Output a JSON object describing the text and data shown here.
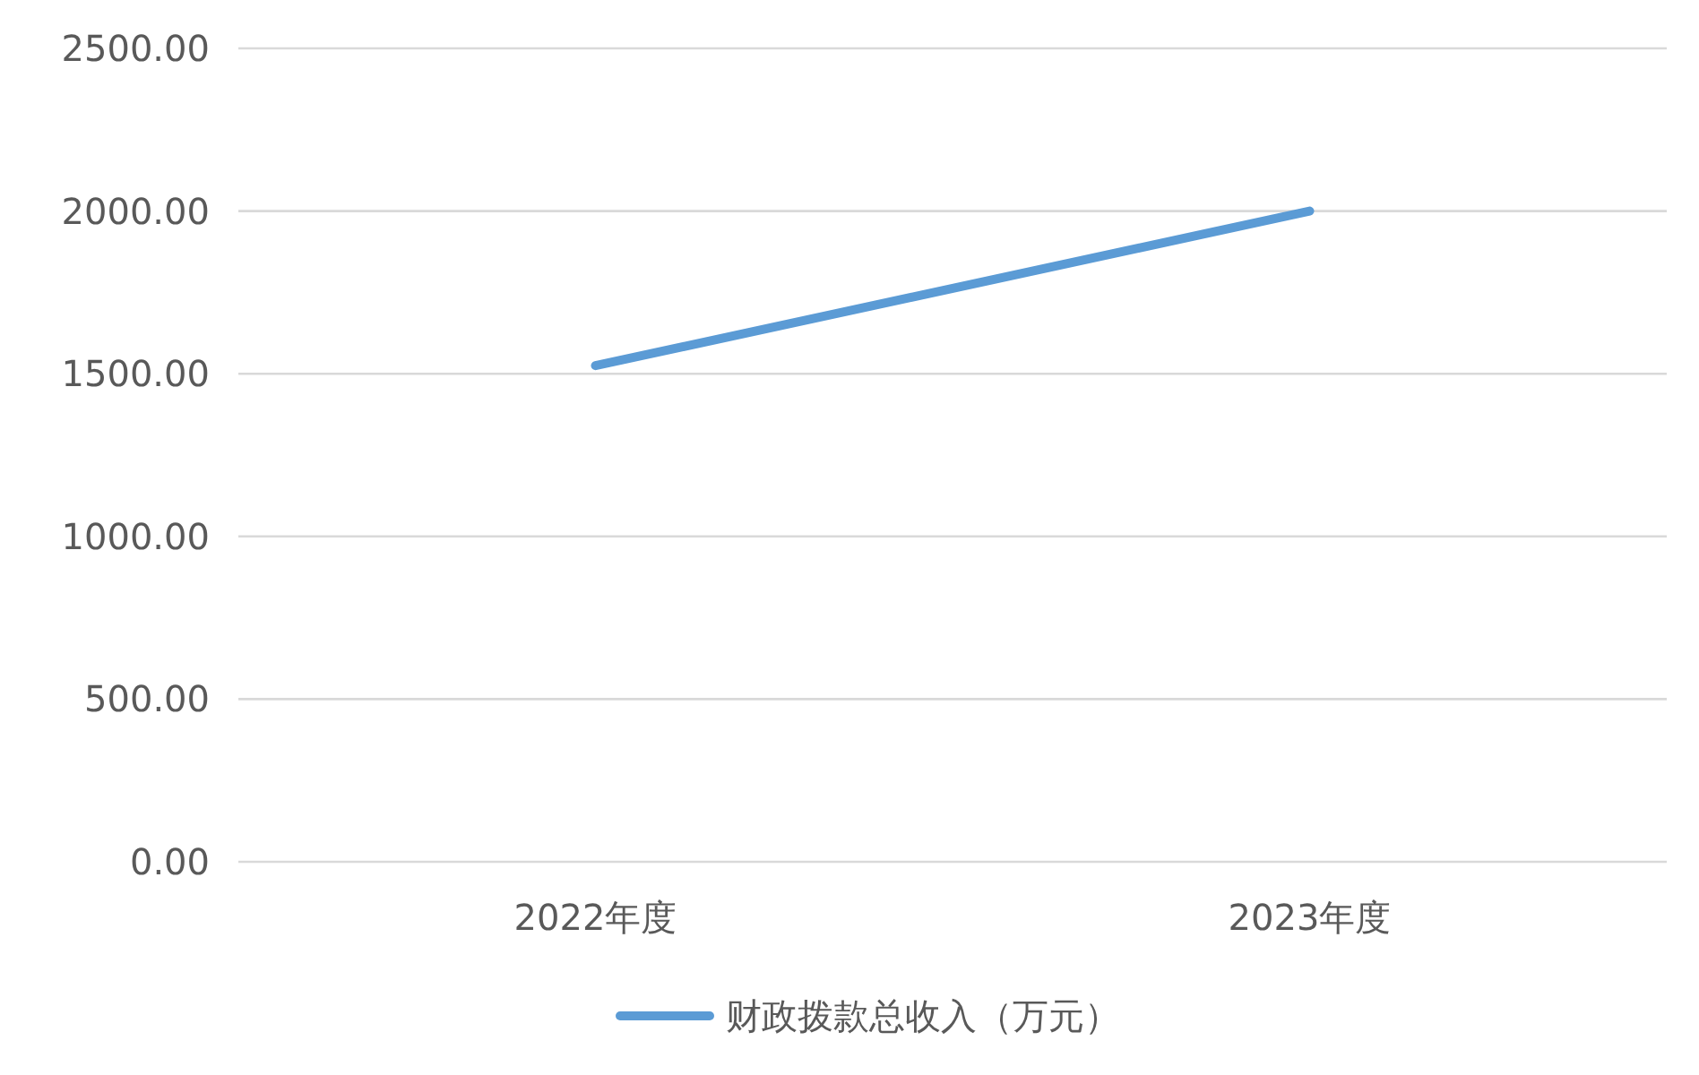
{
  "chart_data": {
    "type": "line",
    "categories": [
      "2022年度",
      "2023年度"
    ],
    "series": [
      {
        "name": "财政拨款总收入（万元）",
        "color": "#5b9bd5",
        "values": [
          1525,
          2000
        ]
      }
    ],
    "ylim": [
      0,
      2500
    ],
    "yticks": [
      {
        "value": 0,
        "label": "0.00"
      },
      {
        "value": 500,
        "label": "500.00"
      },
      {
        "value": 1000,
        "label": "1000.00"
      },
      {
        "value": 1500,
        "label": "1500.00"
      },
      {
        "value": 2000,
        "label": "2000.00"
      },
      {
        "value": 2500,
        "label": "2500.00"
      }
    ],
    "grid": "y",
    "legend": "bottom",
    "marker": "none",
    "line_style": "solid"
  }
}
